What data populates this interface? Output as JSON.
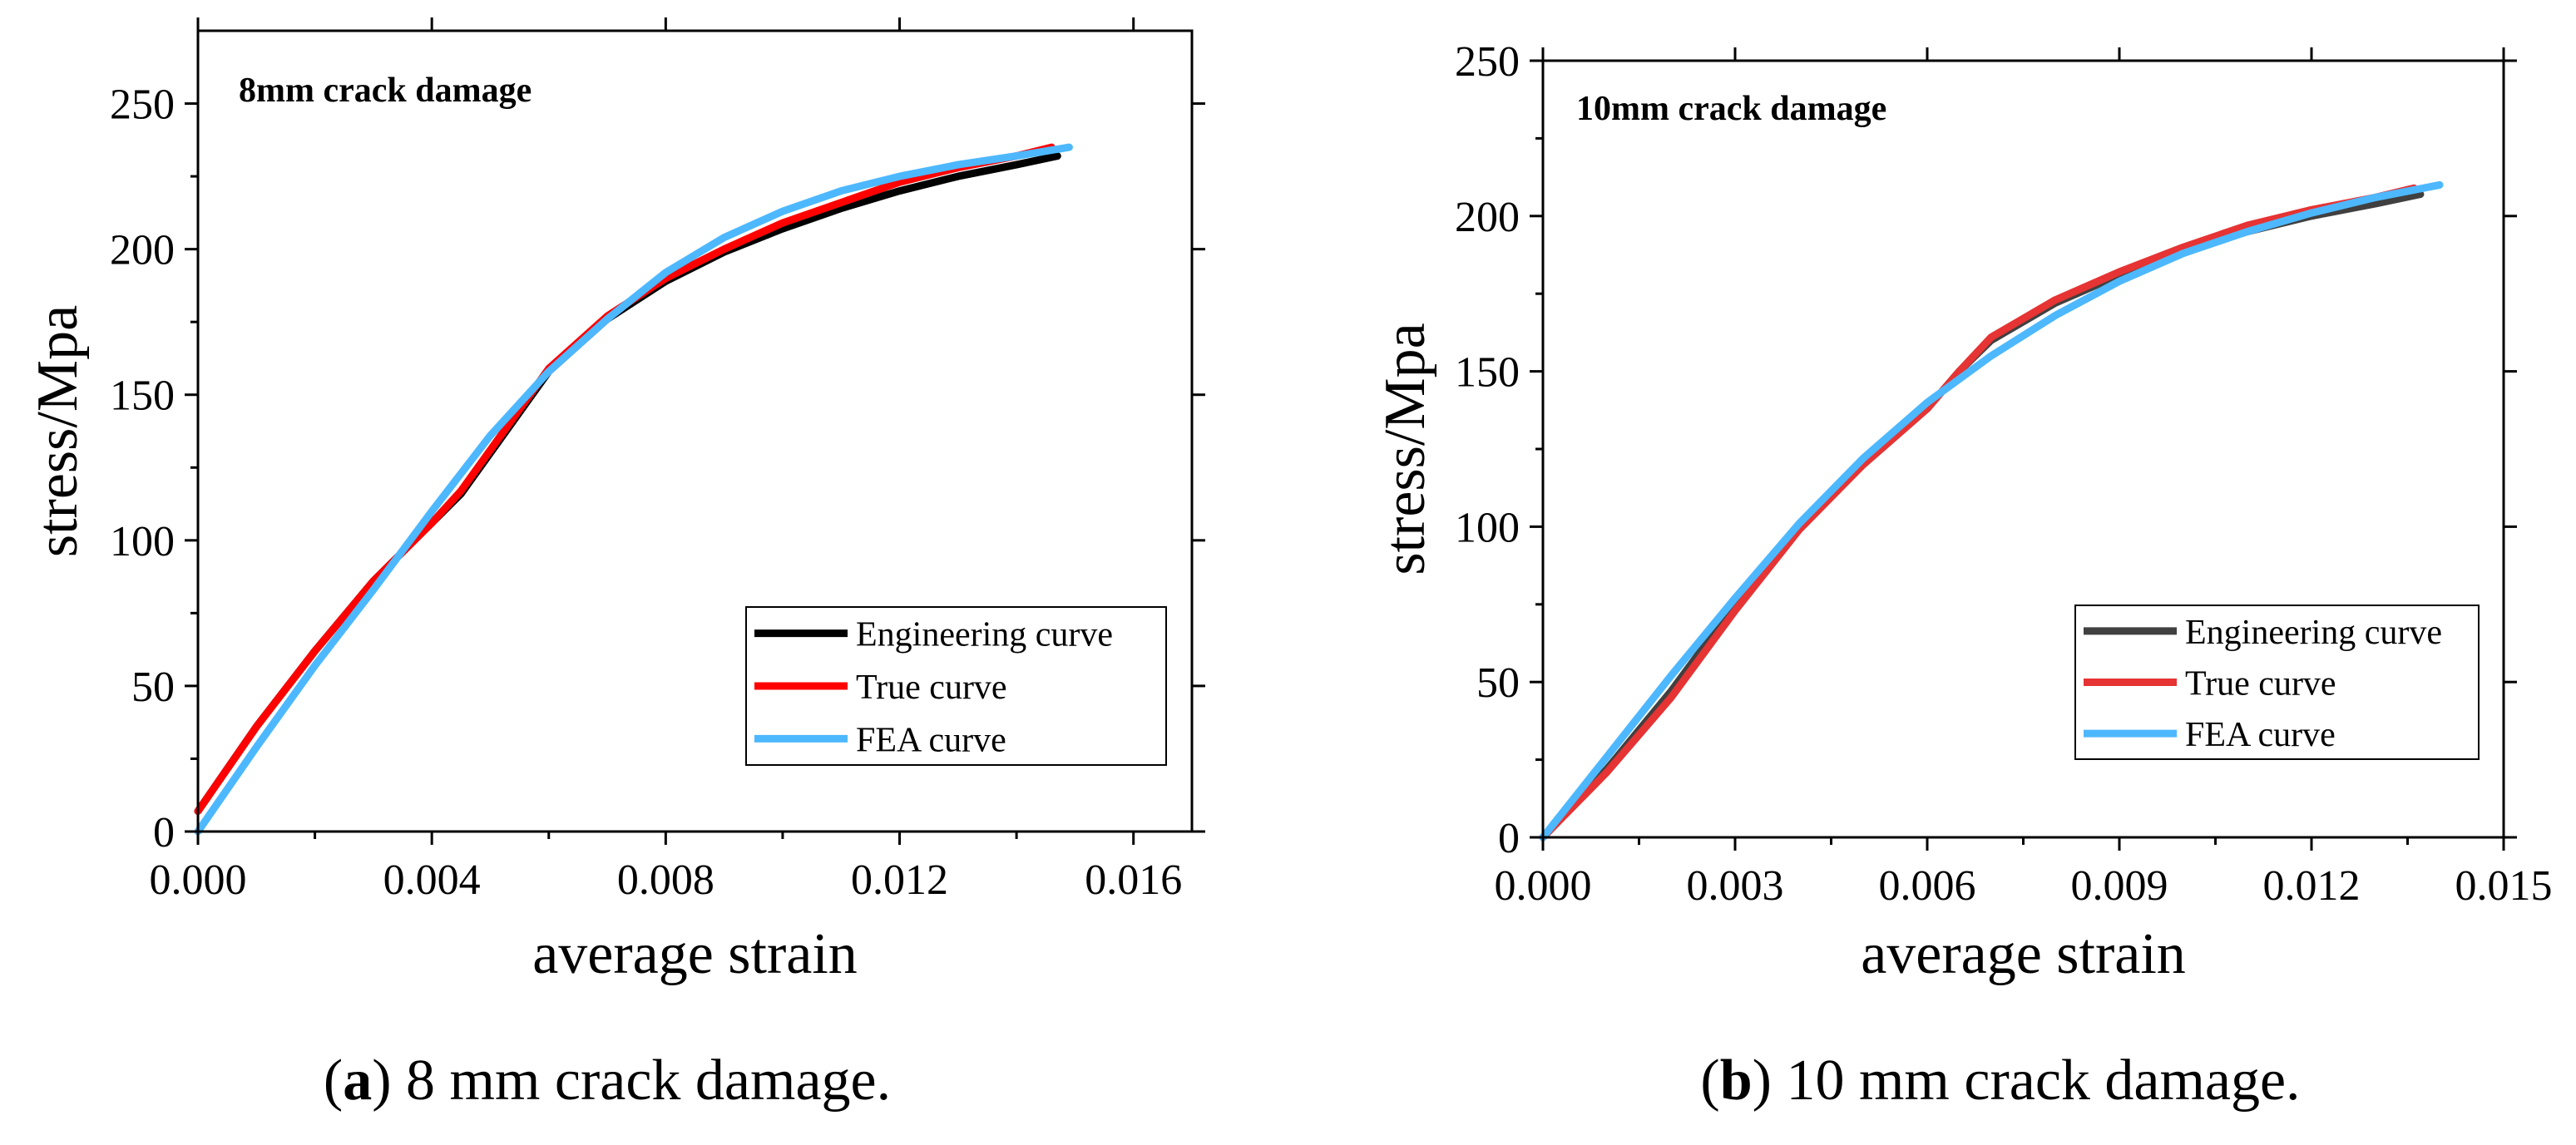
{
  "chart_data": [
    {
      "type": "line",
      "title": "8mm crack damage",
      "xlabel": "average strain",
      "ylabel": "stress/Mpa",
      "xlim": [
        0,
        0.017
      ],
      "ylim": [
        0,
        275
      ],
      "xticks": [
        0.0,
        0.004,
        0.008,
        0.012,
        0.016
      ],
      "xtick_labels": [
        "0.000",
        "0.004",
        "0.008",
        "0.012",
        "0.016"
      ],
      "yticks": [
        0,
        50,
        100,
        150,
        200,
        250
      ],
      "ytick_labels": [
        "0",
        "50",
        "100",
        "150",
        "200",
        "250"
      ],
      "grid": false,
      "legend_position": "bottom-right",
      "series": [
        {
          "name": "Engineering curve",
          "color": "#000000",
          "x": [
            0.0,
            0.001,
            0.002,
            0.003,
            0.004,
            0.0045,
            0.005,
            0.006,
            0.007,
            0.008,
            0.009,
            0.01,
            0.011,
            0.012,
            0.013,
            0.014,
            0.0147
          ],
          "y": [
            7,
            36,
            62,
            86,
            106,
            116,
            130,
            158,
            176,
            189,
            199,
            207,
            214,
            220,
            225,
            229,
            232
          ]
        },
        {
          "name": "True curve",
          "color": "#ff0000",
          "x": [
            0.0,
            0.001,
            0.002,
            0.003,
            0.004,
            0.0045,
            0.005,
            0.006,
            0.007,
            0.008,
            0.009,
            0.01,
            0.011,
            0.012,
            0.013,
            0.014,
            0.0146
          ],
          "y": [
            7,
            36,
            62,
            86,
            106,
            117,
            131,
            159,
            177,
            190,
            200,
            209,
            216,
            223,
            228,
            232,
            235
          ]
        },
        {
          "name": "FEA curve",
          "color": "#4db8ff",
          "x": [
            0.0,
            0.001,
            0.002,
            0.003,
            0.004,
            0.005,
            0.006,
            0.007,
            0.008,
            0.009,
            0.01,
            0.011,
            0.012,
            0.013,
            0.014,
            0.0149
          ],
          "y": [
            0,
            29,
            57,
            83,
            110,
            136,
            158,
            176,
            192,
            204,
            213,
            220,
            225,
            229,
            232,
            235
          ]
        }
      ]
    },
    {
      "type": "line",
      "title": "10mm crack damage",
      "xlabel": "average strain",
      "ylabel": "stress/Mpa",
      "xlim": [
        0,
        0.015
      ],
      "ylim": [
        0,
        250
      ],
      "xticks": [
        0.0,
        0.003,
        0.006,
        0.009,
        0.012,
        0.015
      ],
      "xtick_labels": [
        "0.000",
        "0.003",
        "0.006",
        "0.009",
        "0.012",
        "0.015"
      ],
      "yticks": [
        0,
        50,
        100,
        150,
        200,
        250
      ],
      "ytick_labels": [
        "0",
        "50",
        "100",
        "150",
        "200",
        "250"
      ],
      "grid": false,
      "legend_position": "bottom-right",
      "series": [
        {
          "name": "Engineering curve",
          "color": "#404040",
          "x": [
            0.0,
            0.001,
            0.002,
            0.003,
            0.004,
            0.005,
            0.006,
            0.0065,
            0.007,
            0.008,
            0.009,
            0.01,
            0.011,
            0.012,
            0.013,
            0.0137
          ],
          "y": [
            0,
            22,
            47,
            75,
            100,
            120,
            138,
            150,
            160,
            172,
            181,
            189,
            195,
            200,
            204,
            207
          ]
        },
        {
          "name": "True curve",
          "color": "#e63333",
          "x": [
            0.0,
            0.001,
            0.002,
            0.003,
            0.004,
            0.005,
            0.006,
            0.0065,
            0.007,
            0.008,
            0.009,
            0.01,
            0.011,
            0.012,
            0.013,
            0.0136
          ],
          "y": [
            0,
            21,
            45,
            73,
            99,
            120,
            138,
            150,
            161,
            173,
            182,
            190,
            197,
            202,
            206,
            209
          ]
        },
        {
          "name": "FEA curve",
          "color": "#4db8ff",
          "x": [
            0.0,
            0.001,
            0.002,
            0.003,
            0.004,
            0.005,
            0.006,
            0.007,
            0.008,
            0.009,
            0.01,
            0.011,
            0.012,
            0.013,
            0.014
          ],
          "y": [
            0,
            26,
            52,
            77,
            101,
            122,
            140,
            155,
            168,
            179,
            188,
            195,
            201,
            206,
            210
          ]
        }
      ]
    }
  ],
  "captions": [
    {
      "label": "a",
      "text": " 8 mm crack damage."
    },
    {
      "label": "b",
      "text": " 10 mm crack damage."
    }
  ]
}
